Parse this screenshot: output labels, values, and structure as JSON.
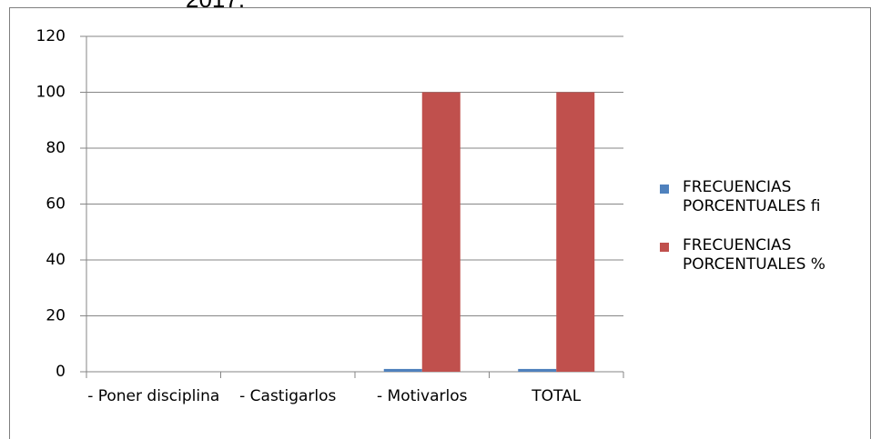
{
  "chart_data": {
    "type": "bar",
    "annotation": "2017.",
    "categories": [
      "- Poner disciplina",
      "- Castigarlos",
      "- Motivarlos",
      "TOTAL"
    ],
    "series": [
      {
        "name": "FRECUENCIAS PORCENTUALES fi",
        "color": "#4f81bd",
        "values": [
          0,
          0,
          1,
          1
        ]
      },
      {
        "name": "FRECUENCIAS PORCENTUALES %",
        "color": "#c0504d",
        "values": [
          0,
          0,
          100,
          100
        ]
      }
    ],
    "ylim": [
      0,
      120
    ],
    "yticks": [
      0,
      20,
      40,
      60,
      80,
      100,
      120
    ],
    "grid": true,
    "legend": "right"
  }
}
